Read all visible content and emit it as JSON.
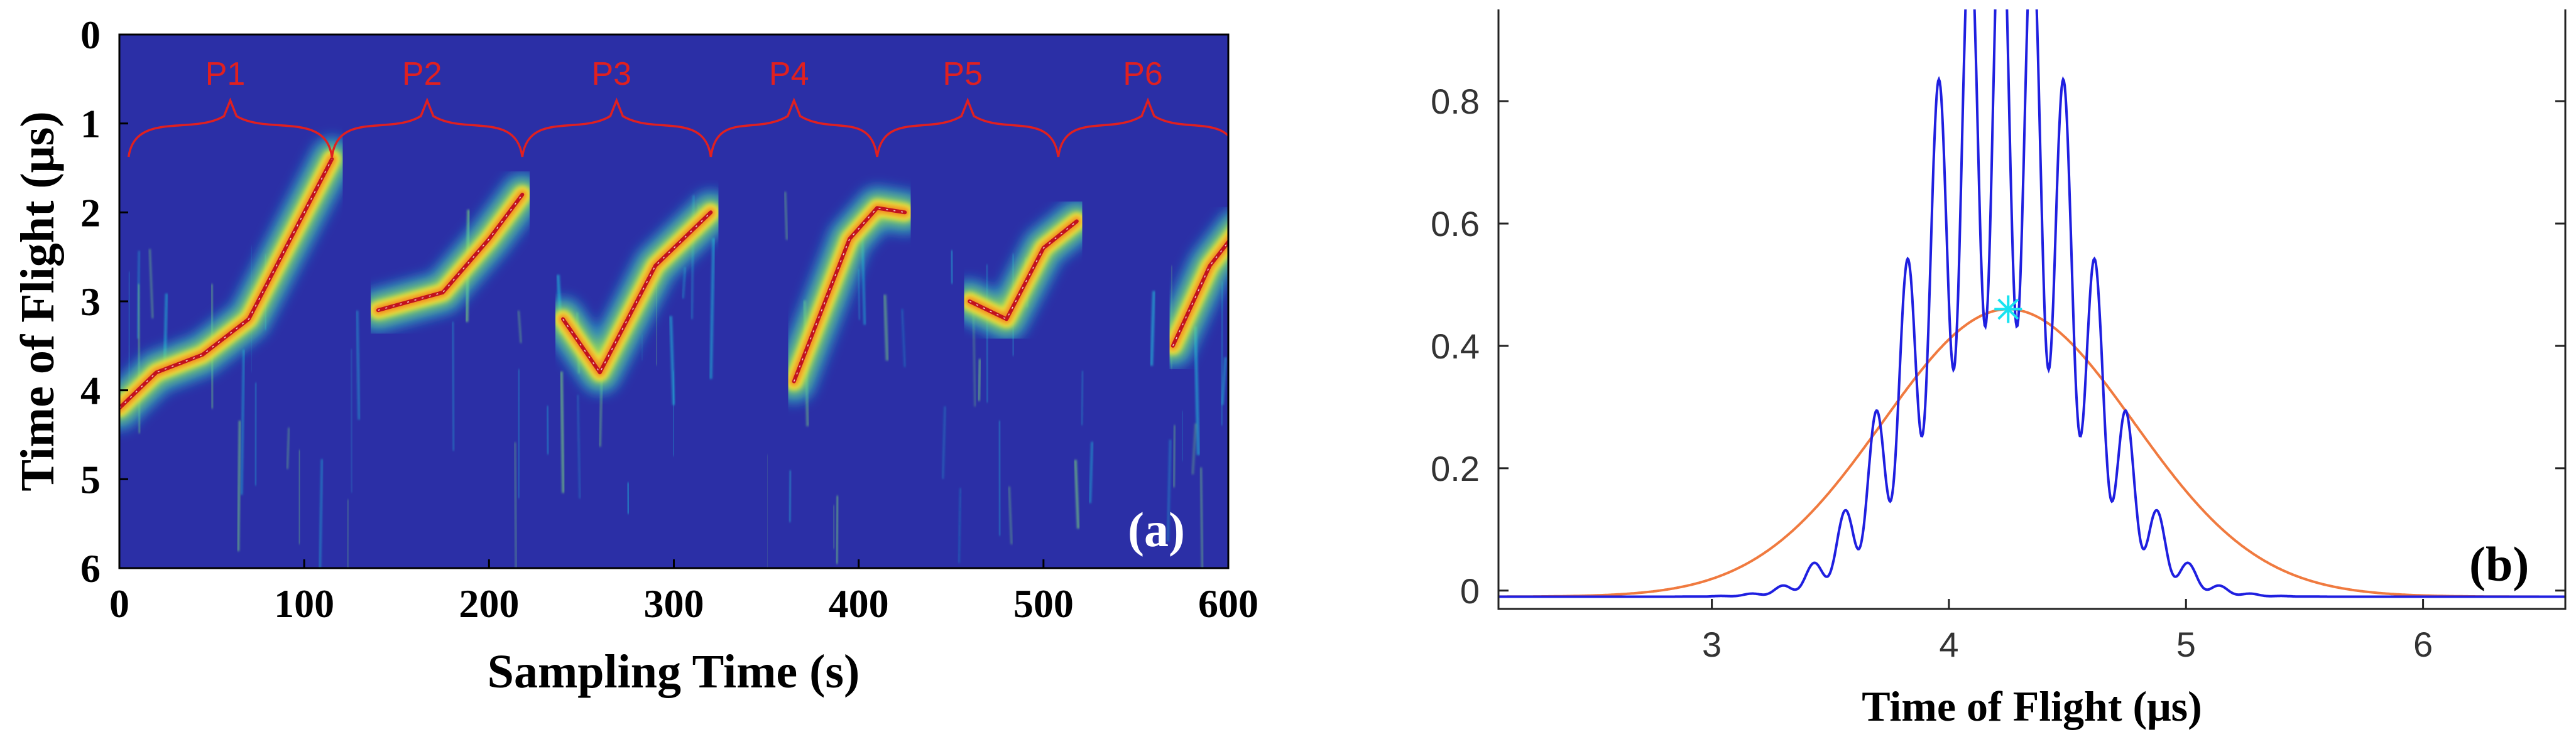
{
  "colors": {
    "heatmap_background": "#2b2fa6",
    "ridge_hot": "#c1121f",
    "ridge_warm": "#f5e63a",
    "ridge_cool": "#22c7d9",
    "bracket": "#e02020",
    "curve_raw": "#1f1fe0",
    "curve_envelope": "#f07a3f",
    "peak_marker": "#18e3f0"
  },
  "chart_data": [
    {
      "type": "heatmap",
      "panel_label": "(a)",
      "xlabel": "Sampling Time (s)",
      "ylabel": "Time of Flight (μs)",
      "xlim": [
        0,
        600
      ],
      "ylim": [
        0,
        6
      ],
      "y_inverted": true,
      "xticks": [
        0,
        100,
        200,
        300,
        400,
        500,
        600
      ],
      "yticks": [
        0,
        1,
        2,
        3,
        4,
        5,
        6
      ],
      "grid": false,
      "periods": [
        {
          "label": "P1",
          "start": 5,
          "end": 115
        },
        {
          "label": "P2",
          "start": 115,
          "end": 218
        },
        {
          "label": "P3",
          "start": 218,
          "end": 320
        },
        {
          "label": "P4",
          "start": 320,
          "end": 410
        },
        {
          "label": "P5",
          "start": 410,
          "end": 508
        },
        {
          "label": "P6",
          "start": 508,
          "end": 605
        }
      ],
      "ridge": [
        [
          0,
          4.2
        ],
        [
          20,
          3.8
        ],
        [
          45,
          3.6
        ],
        [
          70,
          3.2
        ],
        [
          95,
          2.2
        ],
        [
          115,
          1.4
        ],
        [
          140,
          3.1
        ],
        [
          175,
          2.9
        ],
        [
          200,
          2.3
        ],
        [
          218,
          1.8
        ],
        [
          240,
          3.2
        ],
        [
          260,
          3.8
        ],
        [
          290,
          2.6
        ],
        [
          320,
          2.0
        ],
        [
          340,
          3.3
        ],
        [
          365,
          3.9
        ],
        [
          395,
          2.3
        ],
        [
          410,
          1.95
        ],
        [
          425,
          2.0
        ],
        [
          460,
          3.0
        ],
        [
          480,
          3.2
        ],
        [
          500,
          2.4
        ],
        [
          518,
          2.1
        ],
        [
          545,
          2.9
        ],
        [
          570,
          3.5
        ],
        [
          590,
          2.6
        ],
        [
          605,
          2.2
        ]
      ]
    },
    {
      "type": "line",
      "panel_label": "(b)",
      "xlabel": "Time of Flight (μs)",
      "ylabel": "",
      "xlim": [
        2.1,
        6.6
      ],
      "ylim": [
        -0.03,
        0.95
      ],
      "xticks": [
        3,
        4,
        5,
        6
      ],
      "yticks": [
        0,
        0.2,
        0.4,
        0.6,
        0.8
      ],
      "grid": false,
      "series": [
        {
          "key": "raw",
          "style": "oscillating",
          "center": 4.22,
          "sigma": 0.32,
          "amplitude": 0.82,
          "ripple_period": 0.133,
          "ripple_depth": 0.45,
          "offset": -0.01
        },
        {
          "key": "envelope",
          "style": "gaussian",
          "center": 4.25,
          "sigma": 0.53,
          "amplitude": 0.47,
          "offset": -0.01
        }
      ],
      "peak_marker": {
        "x": 4.25,
        "y": 0.46
      }
    }
  ]
}
